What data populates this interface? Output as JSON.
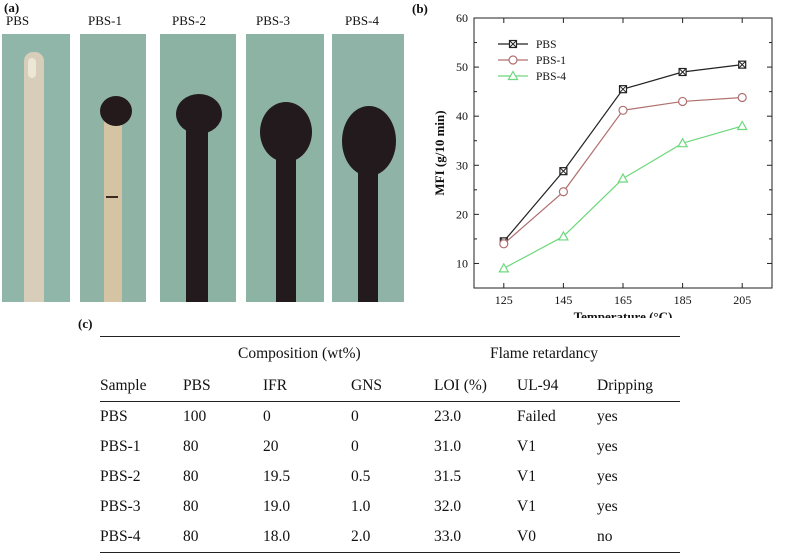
{
  "panel_a": {
    "label": "(a)",
    "samples": [
      {
        "name": "PBS",
        "caption": "PBS"
      },
      {
        "name": "PBS-1",
        "caption": "PBS-1"
      },
      {
        "name": "PBS-2",
        "caption": "PBS-2"
      },
      {
        "name": "PBS-3",
        "caption": "PBS-3"
      },
      {
        "name": "PBS-4",
        "caption": "PBS-4"
      }
    ]
  },
  "panel_b": {
    "label": "(b)"
  },
  "chart_data": {
    "type": "line",
    "x": [
      125,
      145,
      165,
      185,
      205
    ],
    "xlabel": "Temperature (°C)",
    "ylabel": "MFI (g/10 min)",
    "xlim": [
      115,
      215
    ],
    "ylim": [
      5,
      60
    ],
    "xticks": [
      125,
      145,
      165,
      185,
      205
    ],
    "yticks": [
      10,
      20,
      30,
      40,
      50,
      60
    ],
    "legend_position": "top-left",
    "series": [
      {
        "name": "PBS",
        "values": [
          14.5,
          28.8,
          45.5,
          49.0,
          50.5
        ],
        "color": "#222222",
        "marker": "crossed-square"
      },
      {
        "name": "PBS-1",
        "values": [
          14.0,
          24.6,
          41.2,
          43.0,
          43.8
        ],
        "color": "#b07070",
        "marker": "circle"
      },
      {
        "name": "PBS-4",
        "values": [
          9.0,
          15.5,
          27.3,
          34.5,
          38.0
        ],
        "color": "#6ed87e",
        "marker": "triangle"
      }
    ]
  },
  "panel_c": {
    "label": "(c)",
    "group_headers": {
      "composition": "Composition (wt%)",
      "flame": "Flame retardancy"
    },
    "columns": [
      "Sample",
      "PBS",
      "IFR",
      "GNS",
      "LOI (%)",
      "UL-94",
      "Dripping"
    ],
    "rows": [
      [
        "PBS",
        "100",
        "0",
        "0",
        "23.0",
        "Failed",
        "yes"
      ],
      [
        "PBS-1",
        "80",
        "20",
        "0",
        "31.0",
        "V1",
        "yes"
      ],
      [
        "PBS-2",
        "80",
        "19.5",
        "0.5",
        "31.5",
        "V1",
        "yes"
      ],
      [
        "PBS-3",
        "80",
        "19.0",
        "1.0",
        "32.0",
        "V1",
        "yes"
      ],
      [
        "PBS-4",
        "80",
        "18.0",
        "2.0",
        "33.0",
        "V0",
        "no"
      ]
    ]
  }
}
